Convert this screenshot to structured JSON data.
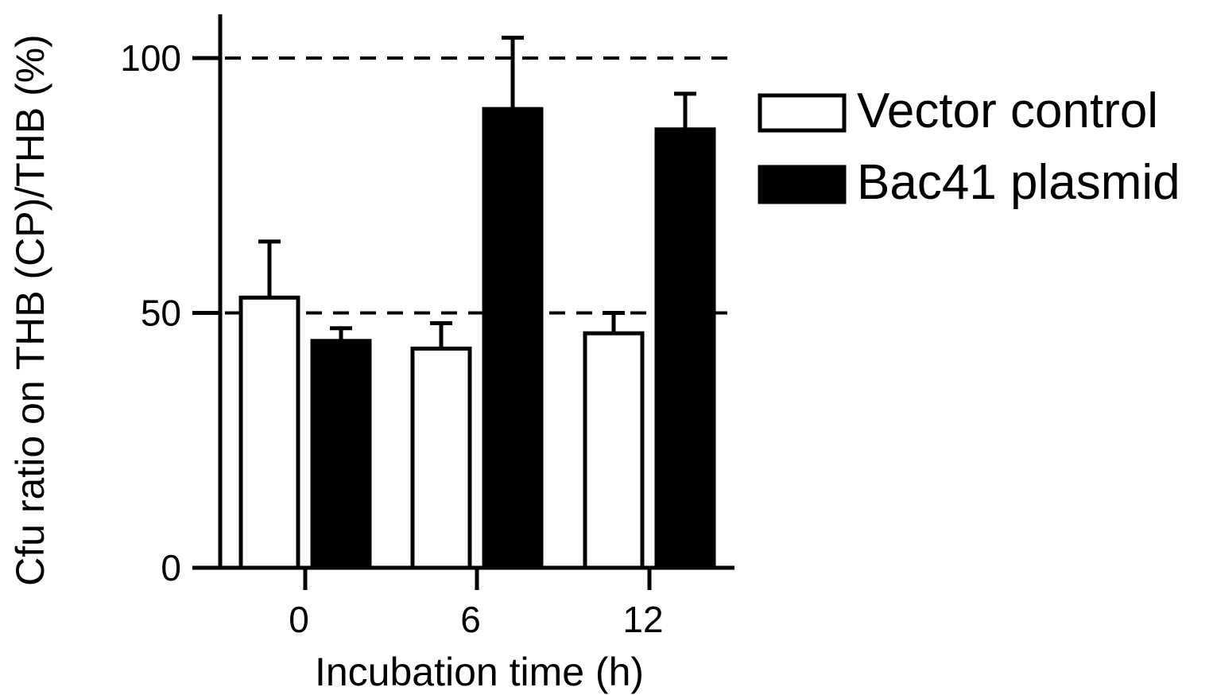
{
  "chart_data": {
    "type": "bar",
    "categories": [
      "0",
      "6",
      "12"
    ],
    "series": [
      {
        "name": "Vector control",
        "values": [
          53,
          43,
          46
        ],
        "errors": [
          11,
          5,
          4
        ],
        "fill": "#ffffff",
        "stroke": "#000000"
      },
      {
        "name": "Bac41 plasmid",
        "values": [
          44.5,
          90,
          86
        ],
        "errors": [
          2.5,
          14,
          7
        ],
        "fill": "#000000",
        "stroke": "#000000"
      }
    ],
    "xlabel": "Incubation time (h)",
    "ylabel": "Cfu ratio on THB (CP)/THB (%)",
    "ylim": [
      0,
      108
    ],
    "yticks": [
      "0",
      "50",
      "100"
    ],
    "reference_lines": [
      50,
      100
    ],
    "reference_line_style": "dashed",
    "grid": false,
    "legend_position": "right"
  }
}
